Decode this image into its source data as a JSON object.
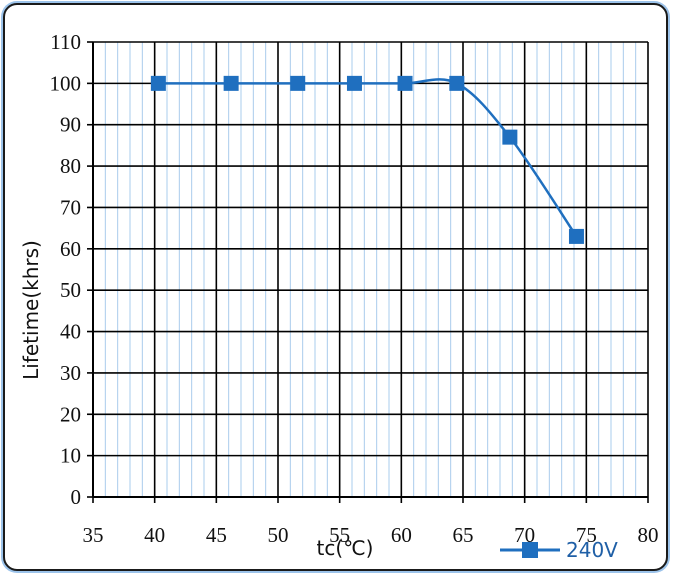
{
  "chart_data": {
    "type": "line",
    "title": "",
    "xlabel": "tc(℃)",
    "ylabel": "Lifetime(khrs)",
    "xlim": [
      35,
      80
    ],
    "ylim": [
      0,
      110
    ],
    "x_ticks": [
      35,
      40,
      45,
      50,
      55,
      60,
      65,
      70,
      75,
      80
    ],
    "y_ticks": [
      0,
      10,
      20,
      30,
      40,
      50,
      60,
      70,
      80,
      90,
      100,
      110
    ],
    "grid": true,
    "smooth": true,
    "legend_position": "bottom-right",
    "series": [
      {
        "name": "240V",
        "color": "#1f6fbf",
        "marker": "square",
        "points": [
          {
            "x": 40.3,
            "y": 100
          },
          {
            "x": 46.2,
            "y": 100
          },
          {
            "x": 51.6,
            "y": 100
          },
          {
            "x": 56.2,
            "y": 100
          },
          {
            "x": 60.3,
            "y": 100
          },
          {
            "x": 64.5,
            "y": 100
          },
          {
            "x": 68.8,
            "y": 87
          },
          {
            "x": 74.2,
            "y": 63
          }
        ]
      }
    ]
  }
}
